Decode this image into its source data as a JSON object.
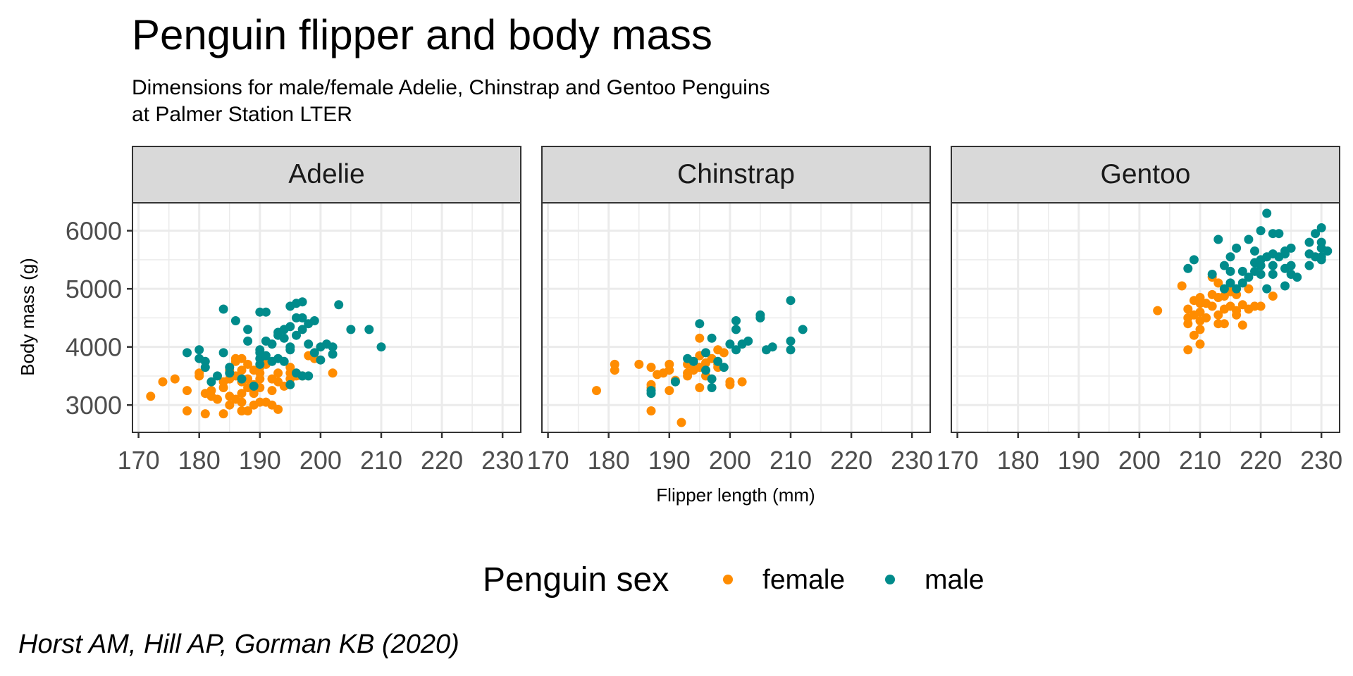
{
  "colors": {
    "female": "#FF8C00",
    "male": "#008B8B"
  },
  "chart_data": {
    "type": "scatter",
    "title": "Penguin flipper and body mass",
    "subtitle_lines": [
      "Dimensions for male/female Adelie, Chinstrap and Gentoo Penguins",
      "at Palmer Station LTER"
    ],
    "xlabel": "Flipper length (mm)",
    "ylabel": "Body mass (g)",
    "xlim": [
      169,
      233
    ],
    "ylim": [
      2530,
      6480
    ],
    "xticks": [
      170,
      180,
      190,
      200,
      210,
      220,
      230
    ],
    "yticks": [
      3000,
      4000,
      5000,
      6000
    ],
    "legend": {
      "title": "Penguin sex",
      "entries": [
        "female",
        "male"
      ],
      "position": "bottom"
    },
    "caption": "Horst AM, Hill AP, Gorman KB (2020)",
    "facets": [
      {
        "name": "Adelie",
        "female": [
          [
            172,
            3150
          ],
          [
            174,
            3400
          ],
          [
            176,
            3450
          ],
          [
            178,
            2900
          ],
          [
            178,
            3250
          ],
          [
            180,
            3500
          ],
          [
            180,
            3550
          ],
          [
            181,
            2850
          ],
          [
            181,
            3200
          ],
          [
            182,
            3150
          ],
          [
            182,
            3250
          ],
          [
            183,
            3100
          ],
          [
            184,
            2850
          ],
          [
            184,
            3400
          ],
          [
            184,
            3300
          ],
          [
            185,
            3000
          ],
          [
            185,
            3150
          ],
          [
            185,
            3450
          ],
          [
            185,
            3600
          ],
          [
            186,
            3100
          ],
          [
            186,
            3500
          ],
          [
            186,
            3750
          ],
          [
            186,
            3800
          ],
          [
            187,
            2900
          ],
          [
            187,
            3050
          ],
          [
            187,
            3200
          ],
          [
            187,
            3400
          ],
          [
            187,
            3600
          ],
          [
            187,
            3800
          ],
          [
            188,
            2900
          ],
          [
            188,
            3300
          ],
          [
            188,
            3450
          ],
          [
            188,
            3700
          ],
          [
            189,
            3000
          ],
          [
            189,
            3200
          ],
          [
            189,
            3350
          ],
          [
            189,
            3600
          ],
          [
            190,
            3050
          ],
          [
            190,
            3300
          ],
          [
            190,
            3450
          ],
          [
            190,
            3550
          ],
          [
            190,
            3650
          ],
          [
            191,
            3050
          ],
          [
            191,
            3700
          ],
          [
            191,
            3800
          ],
          [
            192,
            3000
          ],
          [
            192,
            3250
          ],
          [
            192,
            3450
          ],
          [
            193,
            2925
          ],
          [
            193,
            3400
          ],
          [
            193,
            3550
          ],
          [
            194,
            3325
          ],
          [
            195,
            3450
          ],
          [
            195,
            3550
          ],
          [
            195,
            3650
          ],
          [
            196,
            3500
          ],
          [
            197,
            3500
          ],
          [
            198,
            3850
          ],
          [
            199,
            3800
          ],
          [
            202,
            3550
          ]
        ],
        "male": [
          [
            178,
            3900
          ],
          [
            180,
            3800
          ],
          [
            180,
            3950
          ],
          [
            181,
            3750
          ],
          [
            181,
            3650
          ],
          [
            182,
            3400
          ],
          [
            183,
            3500
          ],
          [
            184,
            4650
          ],
          [
            184,
            3900
          ],
          [
            185,
            3550
          ],
          [
            185,
            3650
          ],
          [
            186,
            4450
          ],
          [
            187,
            3450
          ],
          [
            188,
            4100
          ],
          [
            188,
            4300
          ],
          [
            189,
            3325
          ],
          [
            190,
            3900
          ],
          [
            190,
            4600
          ],
          [
            190,
            3800
          ],
          [
            190,
            3950
          ],
          [
            190,
            3700
          ],
          [
            191,
            4600
          ],
          [
            191,
            4100
          ],
          [
            191,
            3850
          ],
          [
            192,
            4050
          ],
          [
            192,
            3750
          ],
          [
            193,
            4250
          ],
          [
            193,
            4200
          ],
          [
            193,
            3800
          ],
          [
            194,
            4150
          ],
          [
            194,
            3750
          ],
          [
            194,
            4300
          ],
          [
            195,
            4350
          ],
          [
            195,
            4000
          ],
          [
            195,
            4700
          ],
          [
            195,
            3950
          ],
          [
            195,
            3350
          ],
          [
            196,
            4750
          ],
          [
            196,
            4200
          ],
          [
            196,
            4500
          ],
          [
            196,
            3550
          ],
          [
            197,
            4775
          ],
          [
            197,
            4500
          ],
          [
            197,
            4300
          ],
          [
            197,
            3500
          ],
          [
            198,
            4400
          ],
          [
            198,
            4050
          ],
          [
            198,
            3500
          ],
          [
            199,
            4450
          ],
          [
            199,
            3900
          ],
          [
            200,
            4000
          ],
          [
            200,
            3775
          ],
          [
            201,
            4050
          ],
          [
            202,
            3875
          ],
          [
            202,
            4000
          ],
          [
            203,
            4725
          ],
          [
            205,
            4300
          ],
          [
            208,
            4300
          ],
          [
            210,
            4000
          ]
        ]
      },
      {
        "name": "Chinstrap",
        "female": [
          [
            178,
            3250
          ],
          [
            181,
            3700
          ],
          [
            181,
            3600
          ],
          [
            185,
            3700
          ],
          [
            187,
            2900
          ],
          [
            187,
            3300
          ],
          [
            187,
            3350
          ],
          [
            187,
            3650
          ],
          [
            188,
            3525
          ],
          [
            189,
            3550
          ],
          [
            190,
            3250
          ],
          [
            190,
            3600
          ],
          [
            190,
            3700
          ],
          [
            191,
            3425
          ],
          [
            192,
            2700
          ],
          [
            193,
            3500
          ],
          [
            193,
            3550
          ],
          [
            193,
            3700
          ],
          [
            194,
            3600
          ],
          [
            195,
            3300
          ],
          [
            195,
            3650
          ],
          [
            195,
            3850
          ],
          [
            195,
            4150
          ],
          [
            196,
            3500
          ],
          [
            196,
            3725
          ],
          [
            197,
            3800
          ],
          [
            198,
            3650
          ],
          [
            198,
            3700
          ],
          [
            198,
            3950
          ],
          [
            199,
            3900
          ],
          [
            200,
            3400
          ],
          [
            200,
            3350
          ],
          [
            202,
            3400
          ]
        ],
        "male": [
          [
            187,
            3250
          ],
          [
            187,
            3200
          ],
          [
            191,
            3400
          ],
          [
            193,
            3800
          ],
          [
            194,
            3750
          ],
          [
            195,
            4400
          ],
          [
            196,
            3600
          ],
          [
            196,
            3900
          ],
          [
            197,
            4150
          ],
          [
            197,
            3300
          ],
          [
            197,
            3450
          ],
          [
            198,
            3750
          ],
          [
            199,
            3650
          ],
          [
            200,
            4050
          ],
          [
            201,
            3950
          ],
          [
            201,
            4450
          ],
          [
            201,
            4300
          ],
          [
            202,
            4050
          ],
          [
            203,
            4100
          ],
          [
            205,
            4550
          ],
          [
            205,
            4500
          ],
          [
            206,
            3950
          ],
          [
            207,
            4000
          ],
          [
            210,
            4800
          ],
          [
            210,
            4100
          ],
          [
            210,
            3950
          ],
          [
            212,
            4300
          ]
        ]
      },
      {
        "name": "Gentoo",
        "female": [
          [
            203,
            4625
          ],
          [
            207,
            5050
          ],
          [
            208,
            3950
          ],
          [
            208,
            4400
          ],
          [
            208,
            4500
          ],
          [
            208,
            4650
          ],
          [
            209,
            4200
          ],
          [
            209,
            4550
          ],
          [
            209,
            4800
          ],
          [
            210,
            4050
          ],
          [
            210,
            4300
          ],
          [
            210,
            4450
          ],
          [
            210,
            4600
          ],
          [
            210,
            4750
          ],
          [
            210,
            4850
          ],
          [
            211,
            4500
          ],
          [
            211,
            4750
          ],
          [
            212,
            4700
          ],
          [
            212,
            4900
          ],
          [
            212,
            5200
          ],
          [
            213,
            4400
          ],
          [
            213,
            4550
          ],
          [
            213,
            4850
          ],
          [
            213,
            5100
          ],
          [
            214,
            4400
          ],
          [
            214,
            4650
          ],
          [
            214,
            4875
          ],
          [
            215,
            4700
          ],
          [
            215,
            4950
          ],
          [
            215,
            5000
          ],
          [
            216,
            4625
          ],
          [
            216,
            4900
          ],
          [
            216,
            4550
          ],
          [
            217,
            4375
          ],
          [
            217,
            4725
          ],
          [
            218,
            4650
          ],
          [
            218,
            5000
          ],
          [
            219,
            4700
          ],
          [
            220,
            4700
          ],
          [
            222,
            4875
          ]
        ],
        "male": [
          [
            208,
            5350
          ],
          [
            209,
            5500
          ],
          [
            212,
            5250
          ],
          [
            213,
            5850
          ],
          [
            214,
            5400
          ],
          [
            214,
            5000
          ],
          [
            215,
            5100
          ],
          [
            215,
            5300
          ],
          [
            215,
            5550
          ],
          [
            216,
            5700
          ],
          [
            216,
            5000
          ],
          [
            217,
            5100
          ],
          [
            217,
            5300
          ],
          [
            218,
            5850
          ],
          [
            218,
            5200
          ],
          [
            219,
            5650
          ],
          [
            219,
            5450
          ],
          [
            219,
            5300
          ],
          [
            220,
            5250
          ],
          [
            220,
            5400
          ],
          [
            220,
            6000
          ],
          [
            220,
            5500
          ],
          [
            221,
            5550
          ],
          [
            221,
            5000
          ],
          [
            221,
            6300
          ],
          [
            222,
            5600
          ],
          [
            222,
            5400
          ],
          [
            222,
            5950
          ],
          [
            222,
            5250
          ],
          [
            223,
            5550
          ],
          [
            223,
            5950
          ],
          [
            224,
            5350
          ],
          [
            224,
            5600
          ],
          [
            224,
            5650
          ],
          [
            224,
            5050
          ],
          [
            225,
            5700
          ],
          [
            225,
            5400
          ],
          [
            225,
            5250
          ],
          [
            226,
            5200
          ],
          [
            228,
            5400
          ],
          [
            228,
            5600
          ],
          [
            228,
            5800
          ],
          [
            229,
            5550
          ],
          [
            229,
            5950
          ],
          [
            230,
            5550
          ],
          [
            230,
            5800
          ],
          [
            230,
            6050
          ],
          [
            230,
            5700
          ],
          [
            230,
            5500
          ],
          [
            231,
            5650
          ]
        ]
      }
    ]
  }
}
